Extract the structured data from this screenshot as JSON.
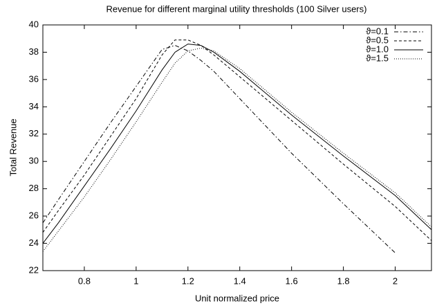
{
  "chart_data": {
    "type": "line",
    "title": "Revenue for different marginal utility thresholds (100 Silver users)",
    "x_label": "Unit normalized price",
    "y_label": "Total Revenue",
    "x": [
      0.64,
      0.7,
      0.8,
      0.9,
      1.0,
      1.1,
      1.15,
      1.2,
      1.25,
      1.3,
      1.4,
      1.6,
      1.8,
      2.0,
      2.14
    ],
    "series": [
      {
        "name": "ϑ=0.1",
        "color": "#000000",
        "dash": "6,3,1.5,3",
        "values": [
          25.5,
          27.2,
          30.0,
          32.8,
          35.5,
          38.2,
          38.5,
          38.1,
          37.4,
          36.6,
          34.6,
          30.6,
          26.9,
          23.3,
          null
        ]
      },
      {
        "name": "ϑ=0.5",
        "color": "#000000",
        "dash": "4,3",
        "values": [
          24.8,
          26.4,
          29.0,
          31.8,
          34.6,
          37.8,
          38.9,
          38.9,
          38.5,
          37.8,
          36.2,
          33.0,
          29.8,
          26.7,
          24.2
        ]
      },
      {
        "name": "ϑ=1.0",
        "color": "#000000",
        "dash": "none",
        "values": [
          24.0,
          25.5,
          28.2,
          30.9,
          33.7,
          36.7,
          38.0,
          38.6,
          38.5,
          38.0,
          36.6,
          33.4,
          30.4,
          27.5,
          25.0
        ]
      },
      {
        "name": "ϑ=1.5",
        "color": "#000000",
        "dash": "1,2",
        "values": [
          23.4,
          24.9,
          27.4,
          30.1,
          32.9,
          35.8,
          37.2,
          38.1,
          38.3,
          38.1,
          36.8,
          33.6,
          30.6,
          27.7,
          25.2
        ]
      }
    ],
    "xlim": [
      0.64,
      2.14
    ],
    "ylim": [
      22,
      40
    ],
    "xticks": [
      0.8,
      1,
      1.2,
      1.4,
      1.6,
      1.8,
      2
    ],
    "yticks": [
      22,
      24,
      26,
      28,
      30,
      32,
      34,
      36,
      38,
      40
    ],
    "legend": "top-right"
  }
}
